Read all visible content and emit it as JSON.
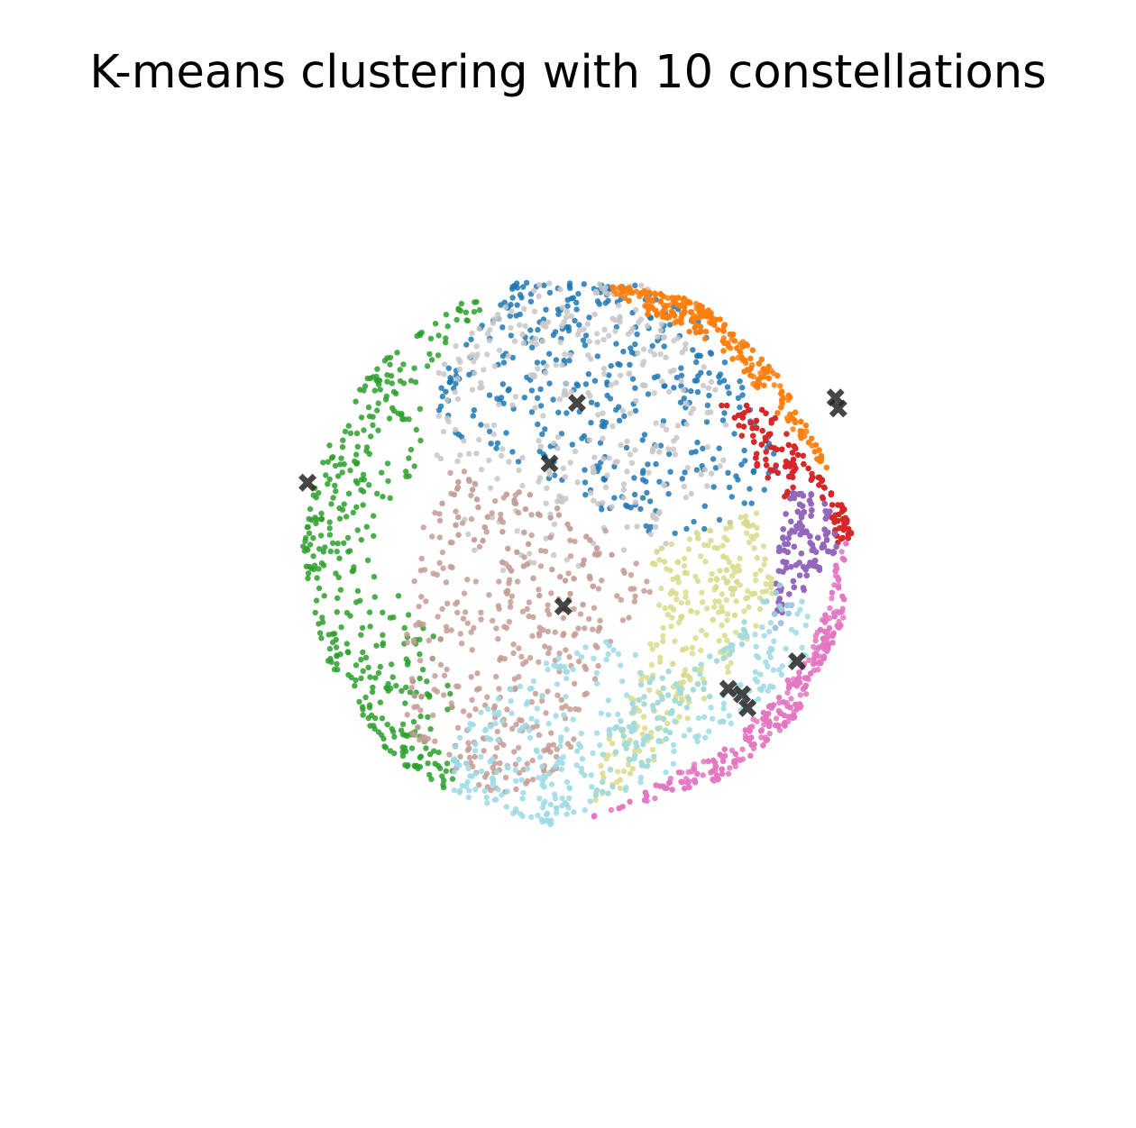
{
  "chart_data": {
    "type": "scatter",
    "title": "K-means clustering with 10 constellations",
    "axes_visible": false,
    "grid": false,
    "legend": "none",
    "xlim": [
      -1.05,
      1.05
    ],
    "ylim": [
      -1.05,
      1.05
    ],
    "point_count_per_cluster_approx": 400,
    "clusters": [
      {
        "color": "#1f77b4",
        "centroid": [
          0.0,
          0.54
        ],
        "hull": [
          [
            -0.45,
            0.7
          ],
          [
            -0.22,
            0.98
          ],
          [
            0.22,
            0.97
          ],
          [
            0.45,
            0.84
          ],
          [
            0.65,
            0.55
          ],
          [
            0.75,
            0.3
          ],
          [
            0.6,
            0.1
          ],
          [
            0.25,
            0.05
          ],
          [
            -0.35,
            0.36
          ],
          [
            -0.55,
            0.5
          ]
        ]
      },
      {
        "color": "#c7c7c7",
        "centroid": [
          -0.1,
          0.32
        ],
        "hull": [
          [
            -0.5,
            0.72
          ],
          [
            -0.15,
            0.98
          ],
          [
            0.25,
            0.97
          ],
          [
            0.55,
            0.55
          ],
          [
            0.55,
            0.3
          ],
          [
            0.3,
            0.0
          ],
          [
            0.0,
            -0.25
          ],
          [
            -0.48,
            0.05
          ],
          [
            -0.52,
            0.4
          ]
        ]
      },
      {
        "color": "#ff7f0e",
        "centroid": [
          0.94,
          0.56
        ],
        "hull": [
          [
            0.08,
            0.98
          ],
          [
            0.45,
            0.91
          ],
          [
            0.72,
            0.66
          ],
          [
            0.88,
            0.38
          ],
          [
            0.93,
            0.28
          ],
          [
            0.82,
            0.38
          ],
          [
            0.55,
            0.72
          ],
          [
            0.22,
            0.88
          ]
        ]
      },
      {
        "color": "#2ca02c",
        "centroid": [
          -0.98,
          0.25
        ],
        "hull": [
          [
            -0.4,
            0.92
          ],
          [
            -0.75,
            0.66
          ],
          [
            -0.95,
            0.3
          ],
          [
            -1.0,
            0.0
          ],
          [
            -0.92,
            -0.38
          ],
          [
            -0.68,
            -0.75
          ],
          [
            -0.45,
            -0.88
          ],
          [
            -0.42,
            -0.65
          ],
          [
            -0.5,
            -0.3
          ],
          [
            -0.78,
            0.0
          ],
          [
            -0.55,
            0.3
          ],
          [
            -0.58,
            0.62
          ],
          [
            -0.3,
            0.92
          ]
        ]
      },
      {
        "color": "#d62728",
        "centroid": [
          0.95,
          0.52
        ],
        "hull": [
          [
            0.5,
            0.55
          ],
          [
            0.7,
            0.52
          ],
          [
            0.88,
            0.28
          ],
          [
            0.98,
            0.15
          ],
          [
            1.0,
            0.05
          ],
          [
            0.88,
            0.0
          ],
          [
            0.72,
            0.2
          ],
          [
            0.6,
            0.4
          ]
        ]
      },
      {
        "color": "#9467bd",
        "centroid": [
          0.8,
          -0.4
        ],
        "hull": [
          [
            0.82,
            0.3
          ],
          [
            0.92,
            0.15
          ],
          [
            0.95,
            0.0
          ],
          [
            0.82,
            -0.15
          ],
          [
            0.7,
            -0.35
          ],
          [
            0.72,
            -0.05
          ],
          [
            0.75,
            0.15
          ]
        ]
      },
      {
        "color": "#e377c2",
        "centroid": [
          0.6,
          -0.52
        ],
        "hull": [
          [
            0.98,
            0.05
          ],
          [
            0.97,
            -0.25
          ],
          [
            0.8,
            -0.6
          ],
          [
            0.55,
            -0.82
          ],
          [
            0.02,
            -0.98
          ],
          [
            0.2,
            -0.9
          ],
          [
            0.55,
            -0.7
          ],
          [
            0.85,
            -0.38
          ],
          [
            0.92,
            -0.1
          ]
        ]
      },
      {
        "color": "#dbdb8d",
        "centroid": [
          0.55,
          -0.5
        ],
        "hull": [
          [
            0.25,
            0.0
          ],
          [
            0.65,
            0.15
          ],
          [
            0.72,
            -0.15
          ],
          [
            0.55,
            -0.45
          ],
          [
            0.3,
            -0.75
          ],
          [
            0.05,
            -0.95
          ],
          [
            0.1,
            -0.7
          ],
          [
            0.25,
            -0.4
          ],
          [
            0.3,
            -0.15
          ]
        ]
      },
      {
        "color": "#c49c94",
        "centroid": [
          -0.05,
          -0.2
        ],
        "hull": [
          [
            -0.5,
            0.35
          ],
          [
            -0.3,
            0.25
          ],
          [
            0.1,
            0.12
          ],
          [
            0.3,
            -0.1
          ],
          [
            0.1,
            -0.4
          ],
          [
            -0.05,
            -0.8
          ],
          [
            -0.3,
            -0.9
          ],
          [
            -0.62,
            -0.65
          ],
          [
            -0.62,
            -0.3
          ],
          [
            -0.58,
            0.0
          ]
        ]
      },
      {
        "color": "#9edae5",
        "centroid": [
          0.62,
          -0.57
        ],
        "hull": [
          [
            -0.45,
            -0.88
          ],
          [
            -0.1,
            -1.0
          ],
          [
            0.35,
            -0.8
          ],
          [
            0.72,
            -0.5
          ],
          [
            0.92,
            -0.3
          ],
          [
            0.75,
            -0.1
          ],
          [
            0.4,
            -0.45
          ],
          [
            0.05,
            -0.3
          ],
          [
            -0.25,
            -0.45
          ],
          [
            -0.45,
            -0.7
          ]
        ]
      }
    ],
    "centroid_marker": "X",
    "centroid_color": "#262626"
  }
}
